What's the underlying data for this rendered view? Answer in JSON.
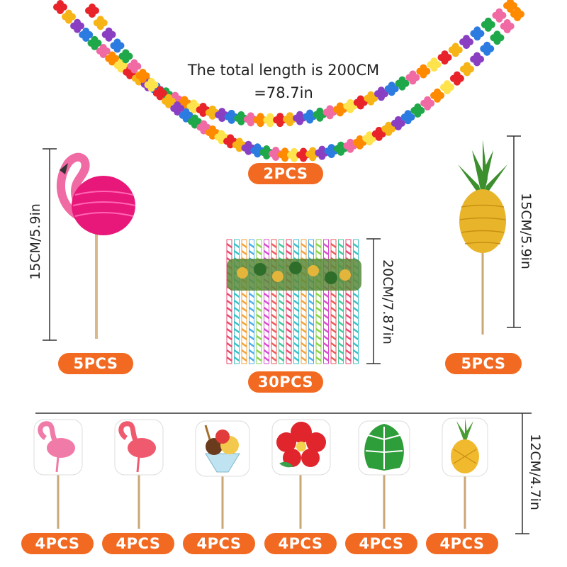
{
  "garland": {
    "caption_line1": "The total length is 200CM",
    "caption_line2": "=78.7in",
    "qty": "2PCS"
  },
  "flamingo_honeycomb": {
    "size": "15CM/5.9in",
    "qty": "5PCS"
  },
  "pineapple_honeycomb": {
    "size": "15CM/5.9in",
    "qty": "5PCS"
  },
  "straws": {
    "size": "20CM/7.87in",
    "qty": "30PCS"
  },
  "cupcake_toppers": {
    "size": "12CM/4.7in",
    "items": [
      {
        "name": "flamingo",
        "qty": "4PCS"
      },
      {
        "name": "flamingo",
        "qty": "4PCS"
      },
      {
        "name": "ice-cream",
        "qty": "4PCS"
      },
      {
        "name": "hibiscus",
        "qty": "4PCS"
      },
      {
        "name": "palm-leaf",
        "qty": "4PCS"
      },
      {
        "name": "pineapple",
        "qty": "4PCS"
      }
    ]
  },
  "colors": {
    "badge": "#f26a21",
    "flamingo": "#e8187a",
    "pineapple": "#e8b52a",
    "leaf": "#2e9e3a"
  }
}
